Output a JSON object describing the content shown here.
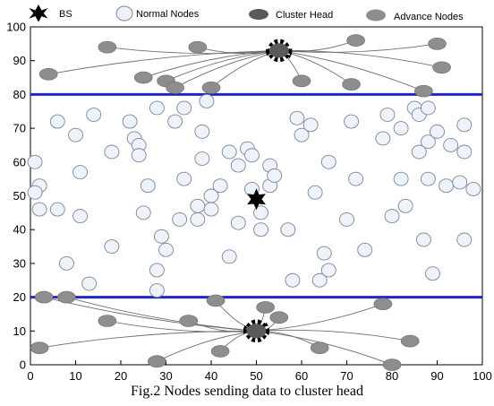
{
  "caption": "Fig.2 Nodes sending data to cluster head",
  "colors": {
    "boundary": "#1f25c9",
    "normal_fill": "#eef2f9",
    "normal_stroke": "#7d8594",
    "advance_fill": "#8e8e8e",
    "head_fill": "#5a5a5a",
    "link": "#6f6f6f",
    "bs": "#000000"
  },
  "chart_data": {
    "type": "scatter",
    "xlim": [
      0,
      100
    ],
    "ylim": [
      0,
      100
    ],
    "x_ticks": [
      0,
      10,
      20,
      30,
      40,
      50,
      60,
      70,
      80,
      90,
      100
    ],
    "y_ticks": [
      0,
      10,
      20,
      30,
      40,
      50,
      60,
      70,
      80,
      90,
      100
    ],
    "grid": false,
    "legend": {
      "position": "top",
      "items": [
        {
          "label": "BS",
          "marker": "star"
        },
        {
          "label": "Normal Nodes",
          "marker": "circle-light"
        },
        {
          "label": "Cluster Head",
          "marker": "ellipse-dark"
        },
        {
          "label": "Advance Nodes",
          "marker": "ellipse-gray"
        }
      ]
    },
    "boundaries": [
      80,
      20
    ],
    "base_station": {
      "x": 50,
      "y": 49
    },
    "cluster_heads": [
      {
        "x": 55,
        "y": 93
      },
      {
        "x": 50,
        "y": 10
      }
    ],
    "advance_nodes": [
      {
        "x": 4,
        "y": 86
      },
      {
        "x": 17,
        "y": 94
      },
      {
        "x": 25,
        "y": 85
      },
      {
        "x": 30,
        "y": 84
      },
      {
        "x": 32,
        "y": 82
      },
      {
        "x": 37,
        "y": 94
      },
      {
        "x": 40,
        "y": 82
      },
      {
        "x": 60,
        "y": 84
      },
      {
        "x": 71,
        "y": 83
      },
      {
        "x": 72,
        "y": 96
      },
      {
        "x": 87,
        "y": 81
      },
      {
        "x": 90,
        "y": 95
      },
      {
        "x": 91,
        "y": 88
      },
      {
        "x": 3,
        "y": 20
      },
      {
        "x": 8,
        "y": 20
      },
      {
        "x": 17,
        "y": 13
      },
      {
        "x": 35,
        "y": 13
      },
      {
        "x": 41,
        "y": 19
      },
      {
        "x": 52,
        "y": 17
      },
      {
        "x": 55,
        "y": 14
      },
      {
        "x": 78,
        "y": 18
      },
      {
        "x": 84,
        "y": 7
      },
      {
        "x": 2,
        "y": 5
      },
      {
        "x": 28,
        "y": 1
      },
      {
        "x": 42,
        "y": 4
      },
      {
        "x": 64,
        "y": 5
      },
      {
        "x": 80,
        "y": 0
      }
    ],
    "normal_nodes": [
      {
        "x": 1,
        "y": 60
      },
      {
        "x": 2,
        "y": 53
      },
      {
        "x": 1,
        "y": 51
      },
      {
        "x": 2,
        "y": 46
      },
      {
        "x": 6,
        "y": 72
      },
      {
        "x": 6,
        "y": 46
      },
      {
        "x": 10,
        "y": 68
      },
      {
        "x": 11,
        "y": 57
      },
      {
        "x": 11,
        "y": 44
      },
      {
        "x": 13,
        "y": 24
      },
      {
        "x": 14,
        "y": 74
      },
      {
        "x": 8,
        "y": 30
      },
      {
        "x": 18,
        "y": 35
      },
      {
        "x": 18,
        "y": 63
      },
      {
        "x": 22,
        "y": 72
      },
      {
        "x": 23,
        "y": 67
      },
      {
        "x": 24,
        "y": 65
      },
      {
        "x": 24,
        "y": 62
      },
      {
        "x": 25,
        "y": 45
      },
      {
        "x": 26,
        "y": 53
      },
      {
        "x": 28,
        "y": 76
      },
      {
        "x": 28,
        "y": 28
      },
      {
        "x": 28,
        "y": 22
      },
      {
        "x": 29,
        "y": 38
      },
      {
        "x": 30,
        "y": 34
      },
      {
        "x": 32,
        "y": 72
      },
      {
        "x": 33,
        "y": 43
      },
      {
        "x": 34,
        "y": 76
      },
      {
        "x": 34,
        "y": 55
      },
      {
        "x": 37,
        "y": 47
      },
      {
        "x": 37,
        "y": 43
      },
      {
        "x": 38,
        "y": 61
      },
      {
        "x": 38,
        "y": 69
      },
      {
        "x": 39,
        "y": 78
      },
      {
        "x": 40,
        "y": 50
      },
      {
        "x": 40,
        "y": 46
      },
      {
        "x": 42,
        "y": 53
      },
      {
        "x": 44,
        "y": 63
      },
      {
        "x": 44,
        "y": 32
      },
      {
        "x": 46,
        "y": 59
      },
      {
        "x": 46,
        "y": 42
      },
      {
        "x": 48,
        "y": 64
      },
      {
        "x": 49,
        "y": 62
      },
      {
        "x": 49,
        "y": 52
      },
      {
        "x": 51,
        "y": 45
      },
      {
        "x": 51,
        "y": 40
      },
      {
        "x": 53,
        "y": 53
      },
      {
        "x": 53,
        "y": 59
      },
      {
        "x": 54,
        "y": 56
      },
      {
        "x": 57,
        "y": 40
      },
      {
        "x": 58,
        "y": 25
      },
      {
        "x": 59,
        "y": 73
      },
      {
        "x": 60,
        "y": 68
      },
      {
        "x": 62,
        "y": 71
      },
      {
        "x": 63,
        "y": 51
      },
      {
        "x": 64,
        "y": 25
      },
      {
        "x": 65,
        "y": 33
      },
      {
        "x": 66,
        "y": 28
      },
      {
        "x": 66,
        "y": 60
      },
      {
        "x": 70,
        "y": 43
      },
      {
        "x": 71,
        "y": 72
      },
      {
        "x": 72,
        "y": 55
      },
      {
        "x": 74,
        "y": 34
      },
      {
        "x": 78,
        "y": 67
      },
      {
        "x": 79,
        "y": 74
      },
      {
        "x": 80,
        "y": 44
      },
      {
        "x": 82,
        "y": 70
      },
      {
        "x": 82,
        "y": 55
      },
      {
        "x": 83,
        "y": 47
      },
      {
        "x": 85,
        "y": 76
      },
      {
        "x": 86,
        "y": 63
      },
      {
        "x": 86,
        "y": 74
      },
      {
        "x": 87,
        "y": 37
      },
      {
        "x": 88,
        "y": 76
      },
      {
        "x": 88,
        "y": 66
      },
      {
        "x": 88,
        "y": 55
      },
      {
        "x": 89,
        "y": 27
      },
      {
        "x": 90,
        "y": 69
      },
      {
        "x": 92,
        "y": 53
      },
      {
        "x": 93,
        "y": 65
      },
      {
        "x": 95,
        "y": 54
      },
      {
        "x": 96,
        "y": 71
      },
      {
        "x": 96,
        "y": 63
      },
      {
        "x": 96,
        "y": 37
      },
      {
        "x": 98,
        "y": 52
      }
    ]
  }
}
